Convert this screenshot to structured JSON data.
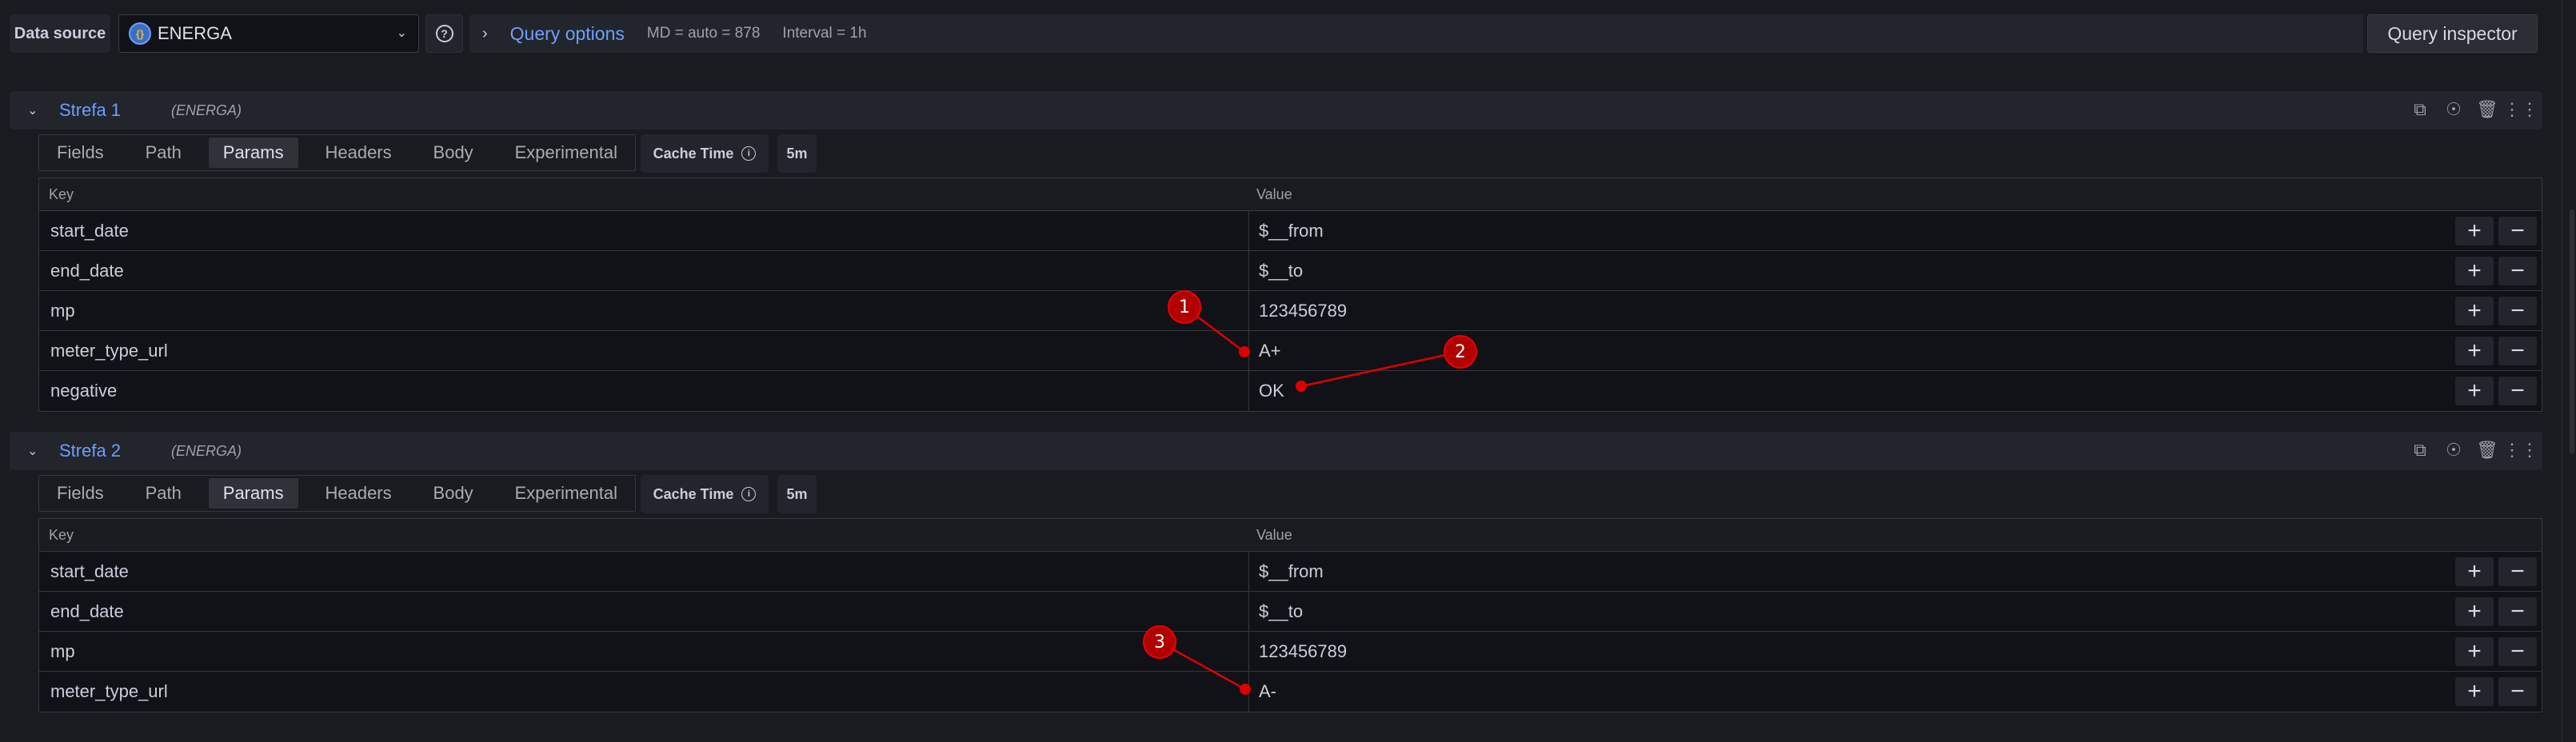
{
  "toolbar": {
    "data_source_label": "Data source",
    "data_source_value": "ENERGA",
    "query_options_label": "Query options",
    "md": "MD = auto = 878",
    "interval": "Interval = 1h",
    "query_inspector": "Query inspector"
  },
  "queries": [
    {
      "name": "Strefa 1",
      "source": "(ENERGA)",
      "tabs": [
        "Fields",
        "Path",
        "Params",
        "Headers",
        "Body",
        "Experimental"
      ],
      "active_tab": "Params",
      "cache_label": "Cache Time",
      "cache_value": "5m",
      "key_header": "Key",
      "value_header": "Value",
      "rows": [
        {
          "key": "start_date",
          "value": "$__from"
        },
        {
          "key": "end_date",
          "value": "$__to"
        },
        {
          "key": "mp",
          "value": "123456789"
        },
        {
          "key": "meter_type_url",
          "value": "A+"
        },
        {
          "key": "negative",
          "value": "OK"
        }
      ]
    },
    {
      "name": "Strefa 2",
      "source": "(ENERGA)",
      "tabs": [
        "Fields",
        "Path",
        "Params",
        "Headers",
        "Body",
        "Experimental"
      ],
      "active_tab": "Params",
      "cache_label": "Cache Time",
      "cache_value": "5m",
      "key_header": "Key",
      "value_header": "Value",
      "rows": [
        {
          "key": "start_date",
          "value": "$__from"
        },
        {
          "key": "end_date",
          "value": "$__to"
        },
        {
          "key": "mp",
          "value": "123456789"
        },
        {
          "key": "meter_type_url",
          "value": "A-"
        }
      ]
    }
  ],
  "annotations": [
    {
      "label": "1"
    },
    {
      "label": "2"
    },
    {
      "label": "3"
    }
  ],
  "colors": {
    "accent": "#6e9fff",
    "annotation": "#b00000"
  }
}
